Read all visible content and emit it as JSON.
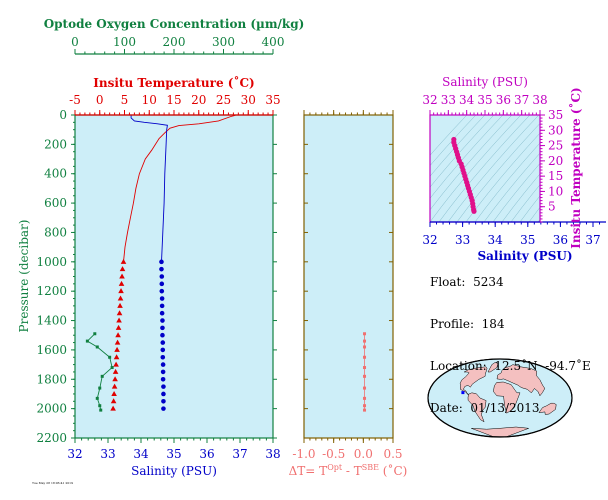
{
  "colors": {
    "oxygen": "#108040",
    "temperature": "#e00000",
    "salinity": "#0000c8",
    "ts_axis": "#c000c0",
    "delta": "#f07070",
    "delta_axis": "#806000",
    "plot_bg": "#cdeef8",
    "ts_points": "#e0108a",
    "land": "#f4c0c0",
    "ocean": "#cdeef8"
  },
  "info": {
    "float_label": "Float:",
    "float_value": "5234",
    "profile_label": "Profile:",
    "profile_value": "184",
    "location_label": "Location:",
    "location_value": "12.5˚N  -94.7˚E",
    "date_label": "Date:",
    "date_value": "01/13/2013"
  },
  "footer_text": "Tue May 28 18:06:41 2019",
  "chart_data": [
    {
      "type": "line",
      "panel": "profiles",
      "ylabel": "Pressure (decibar)",
      "ylim": [
        2200,
        0
      ],
      "yticks": [
        0,
        200,
        400,
        600,
        800,
        1000,
        1200,
        1400,
        1600,
        1800,
        2000,
        2200
      ],
      "axes": {
        "oxygen": {
          "label": "Optode Oxygen Concentration (µm/kg)",
          "lim": [
            0,
            400
          ],
          "ticks": [
            0,
            100,
            200,
            300,
            400
          ]
        },
        "temperature": {
          "label": "Insitu Temperature (˚C)",
          "lim": [
            -5,
            35
          ],
          "ticks": [
            -5,
            0,
            5,
            10,
            15,
            20,
            25,
            30,
            35
          ]
        },
        "salinity": {
          "label": "Salinity (PSU)",
          "lim": [
            32,
            38
          ],
          "ticks": [
            32,
            33,
            34,
            35,
            36,
            37,
            38
          ]
        }
      },
      "series": [
        {
          "name": "Insitu Temperature",
          "axis": "temperature",
          "line": [
            [
              27.4,
              2
            ],
            [
              26.5,
              10
            ],
            [
              24,
              40
            ],
            [
              20,
              60
            ],
            [
              16,
              72
            ],
            [
              14.2,
              90
            ],
            [
              13.2,
              120
            ],
            [
              12,
              160
            ],
            [
              10.5,
              240
            ],
            [
              9.2,
              300
            ],
            [
              8,
              400
            ],
            [
              7.3,
              500
            ],
            [
              6.8,
              600
            ],
            [
              6.2,
              700
            ],
            [
              5.6,
              800
            ],
            [
              5.1,
              900
            ],
            [
              4.8,
              1000
            ]
          ],
          "markers": [
            [
              4.8,
              1000
            ],
            [
              4.6,
              1050
            ],
            [
              4.5,
              1100
            ],
            [
              4.4,
              1150
            ],
            [
              4.3,
              1200
            ],
            [
              4.2,
              1250
            ],
            [
              4.1,
              1300
            ],
            [
              4.0,
              1350
            ],
            [
              3.9,
              1400
            ],
            [
              3.8,
              1450
            ],
            [
              3.7,
              1500
            ],
            [
              3.6,
              1550
            ],
            [
              3.5,
              1600
            ],
            [
              3.4,
              1650
            ],
            [
              3.3,
              1700
            ],
            [
              3.2,
              1750
            ],
            [
              3.1,
              1800
            ],
            [
              3.0,
              1850
            ],
            [
              2.9,
              1900
            ],
            [
              2.8,
              1950
            ],
            [
              2.7,
              2000
            ]
          ]
        },
        {
          "name": "Salinity",
          "axis": "salinity",
          "line": [
            [
              33.7,
              2
            ],
            [
              33.7,
              20
            ],
            [
              33.8,
              40
            ],
            [
              34.1,
              50
            ],
            [
              34.5,
              60
            ],
            [
              34.8,
              70
            ],
            [
              34.78,
              100
            ],
            [
              34.76,
              200
            ],
            [
              34.72,
              400
            ],
            [
              34.7,
              600
            ],
            [
              34.66,
              800
            ],
            [
              34.62,
              1000
            ]
          ],
          "markers": [
            [
              34.62,
              1000
            ],
            [
              34.62,
              1050
            ],
            [
              34.63,
              1100
            ],
            [
              34.63,
              1150
            ],
            [
              34.63,
              1200
            ],
            [
              34.64,
              1250
            ],
            [
              34.64,
              1300
            ],
            [
              34.64,
              1350
            ],
            [
              34.65,
              1400
            ],
            [
              34.65,
              1450
            ],
            [
              34.65,
              1500
            ],
            [
              34.66,
              1550
            ],
            [
              34.66,
              1600
            ],
            [
              34.66,
              1650
            ],
            [
              34.67,
              1700
            ],
            [
              34.67,
              1750
            ],
            [
              34.67,
              1800
            ],
            [
              34.68,
              1850
            ],
            [
              34.68,
              1900
            ],
            [
              34.68,
              1950
            ],
            [
              34.68,
              2000
            ]
          ]
        },
        {
          "name": "Optode Oxygen Concentration",
          "axis": "oxygen",
          "line": [
            [
              40,
              1490
            ],
            [
              25,
              1540
            ],
            [
              45,
              1580
            ],
            [
              70,
              1650
            ],
            [
              75,
              1720
            ],
            [
              55,
              1780
            ],
            [
              50,
              1860
            ],
            [
              45,
              1930
            ],
            [
              50,
              1980
            ],
            [
              52,
              2010
            ]
          ],
          "markers": [
            [
              40,
              1490
            ],
            [
              25,
              1540
            ],
            [
              45,
              1580
            ],
            [
              70,
              1650
            ],
            [
              75,
              1720
            ],
            [
              55,
              1780
            ],
            [
              50,
              1860
            ],
            [
              45,
              1930
            ],
            [
              50,
              1980
            ],
            [
              52,
              2010
            ]
          ]
        }
      ]
    },
    {
      "type": "scatter",
      "panel": "delta_t",
      "xlabel_prefix": "ΔT= T",
      "xlabel_sup1": "Opt",
      "xlabel_mid": " - T",
      "xlabel_sup2": "SBE",
      "xlabel_suffix": " (˚C)",
      "xlim": [
        -1.0,
        0.5
      ],
      "xticks": [
        "-1.0",
        "-0.5",
        "0.0",
        "0.5"
      ],
      "ylim": [
        2200,
        0
      ],
      "points": [
        [
          0.02,
          1490
        ],
        [
          0.02,
          1540
        ],
        [
          0.02,
          1580
        ],
        [
          0.02,
          1650
        ],
        [
          0.02,
          1720
        ],
        [
          0.02,
          1780
        ],
        [
          0.02,
          1860
        ],
        [
          0.02,
          1930
        ],
        [
          0.02,
          1980
        ],
        [
          0.02,
          2010
        ]
      ]
    },
    {
      "type": "scatter",
      "panel": "ts_diagram",
      "top_axis": {
        "label": "Salinity (PSU)",
        "lim": [
          32,
          38
        ],
        "ticks": [
          32,
          33,
          34,
          35,
          36,
          37,
          38
        ]
      },
      "bottom_axis": {
        "label": "Salinity (PSU)",
        "lim": [
          32,
          37
        ],
        "ticks": [
          32,
          33,
          34,
          35,
          36,
          37
        ]
      },
      "y_axis": {
        "label": "Insitu Temperature (˚C)",
        "lim": [
          0,
          35
        ],
        "ticks": [
          5,
          10,
          15,
          20,
          25,
          30,
          35
        ]
      },
      "points": [
        [
          33.3,
          27.0
        ],
        [
          33.3,
          26.0
        ],
        [
          33.35,
          25.0
        ],
        [
          33.4,
          24.0
        ],
        [
          33.45,
          23.0
        ],
        [
          33.5,
          22.0
        ],
        [
          33.55,
          21.0
        ],
        [
          33.6,
          20.0
        ],
        [
          33.7,
          19.0
        ],
        [
          33.75,
          18.0
        ],
        [
          33.8,
          17.0
        ],
        [
          33.85,
          16.0
        ],
        [
          33.9,
          15.0
        ],
        [
          33.95,
          14.0
        ],
        [
          34.0,
          13.0
        ],
        [
          34.05,
          12.0
        ],
        [
          34.1,
          11.0
        ],
        [
          34.15,
          10.0
        ],
        [
          34.2,
          9.0
        ],
        [
          34.25,
          8.0
        ],
        [
          34.3,
          7.0
        ],
        [
          34.33,
          6.0
        ],
        [
          34.35,
          5.0
        ],
        [
          34.38,
          4.0
        ],
        [
          34.4,
          3.5
        ]
      ]
    }
  ],
  "map": {
    "float_lat": 12.5,
    "float_lon": -94.7
  }
}
